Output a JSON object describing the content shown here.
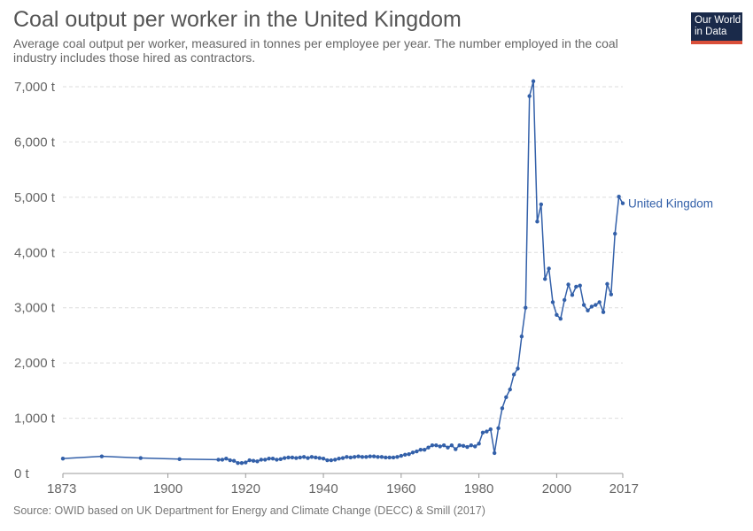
{
  "header": {
    "title": "Coal output per worker in the United Kingdom",
    "subtitle": "Average coal output per worker, measured in tonnes per employee per year. The number employed in the coal industry includes those hired as contractors.",
    "logo_line1": "Our World",
    "logo_line2": "in Data"
  },
  "footer": {
    "source": "Source: OWID based on UK Department for Energy and Climate Change (DECC) & Smill (2017)"
  },
  "colors": {
    "series": "#3360a9",
    "grid": "#dddddd",
    "axis": "#666666"
  },
  "chart_data": {
    "type": "line",
    "title": "Coal output per worker in the United Kingdom",
    "xlim": [
      1873,
      2017
    ],
    "ylim": [
      0,
      7000
    ],
    "x_ticks": [
      1873,
      1900,
      1920,
      1940,
      1960,
      1980,
      2000,
      2017
    ],
    "y_ticks": [
      0,
      1000,
      2000,
      3000,
      4000,
      5000,
      6000,
      7000
    ],
    "y_tick_labels": [
      "0 t",
      "1,000 t",
      "2,000 t",
      "3,000 t",
      "4,000 t",
      "5,000 t",
      "6,000 t",
      "7,000 t"
    ],
    "grid": "horizontal",
    "series": [
      {
        "name": "United Kingdom",
        "x": [
          1873,
          1883,
          1893,
          1903,
          1913,
          1914,
          1915,
          1916,
          1917,
          1918,
          1919,
          1920,
          1921,
          1922,
          1923,
          1924,
          1925,
          1926,
          1927,
          1928,
          1929,
          1930,
          1931,
          1932,
          1933,
          1934,
          1935,
          1936,
          1937,
          1938,
          1939,
          1940,
          1941,
          1942,
          1943,
          1944,
          1945,
          1946,
          1947,
          1948,
          1949,
          1950,
          1951,
          1952,
          1953,
          1954,
          1955,
          1956,
          1957,
          1958,
          1959,
          1960,
          1961,
          1962,
          1963,
          1964,
          1965,
          1966,
          1967,
          1968,
          1969,
          1970,
          1971,
          1972,
          1973,
          1974,
          1975,
          1976,
          1977,
          1978,
          1979,
          1980,
          1981,
          1982,
          1983,
          1984,
          1985,
          1986,
          1987,
          1988,
          1989,
          1990,
          1991,
          1992,
          1993,
          1994,
          1995,
          1996,
          1997,
          1998,
          1999,
          2000,
          2001,
          2002,
          2003,
          2004,
          2005,
          2006,
          2007,
          2008,
          2009,
          2010,
          2011,
          2012,
          2013,
          2014,
          2015,
          2016,
          2017
        ],
        "y": [
          270,
          310,
          280,
          260,
          250,
          250,
          270,
          240,
          230,
          190,
          190,
          200,
          240,
          230,
          220,
          250,
          250,
          270,
          270,
          250,
          260,
          280,
          290,
          290,
          280,
          290,
          300,
          280,
          300,
          290,
          280,
          270,
          240,
          240,
          250,
          270,
          280,
          300,
          290,
          300,
          310,
          300,
          300,
          310,
          310,
          300,
          300,
          290,
          290,
          290,
          300,
          320,
          340,
          350,
          380,
          400,
          430,
          430,
          470,
          510,
          510,
          490,
          510,
          470,
          510,
          440,
          510,
          500,
          480,
          510,
          490,
          540,
          740,
          760,
          800,
          370,
          820,
          1180,
          1380,
          1520,
          1790,
          1900,
          2480,
          3000,
          6830,
          7100,
          4560,
          4870,
          3520,
          3710,
          3100,
          2870,
          2800,
          3140,
          3420,
          3230,
          3380,
          3400,
          3050,
          2950,
          3020,
          3050,
          3100,
          2920,
          3430,
          3240,
          4340,
          5010,
          4890
        ]
      }
    ]
  }
}
